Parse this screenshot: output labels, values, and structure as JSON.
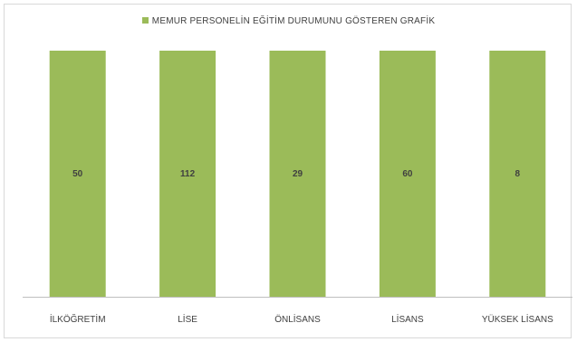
{
  "chart_data": {
    "type": "bar",
    "categories": [
      "İLKÖĞRETİM",
      "LİSE",
      "ÖNLİSANS",
      "LİSANS",
      "YÜKSEK LİSANS"
    ],
    "series": [
      {
        "name": "MEMUR PERSONELİN EĞİTİM DURUMUNU GÖSTEREN GRAFİK",
        "values": [
          50,
          112,
          29,
          60,
          8
        ],
        "color": "#9bbb59"
      }
    ],
    "bar_fill": "full-height",
    "data_labels": "center",
    "legend_position": "top",
    "grid": false,
    "colors": {
      "bar": "#9bbb59",
      "axis": "#bfbfbf",
      "text": "#404040"
    }
  }
}
